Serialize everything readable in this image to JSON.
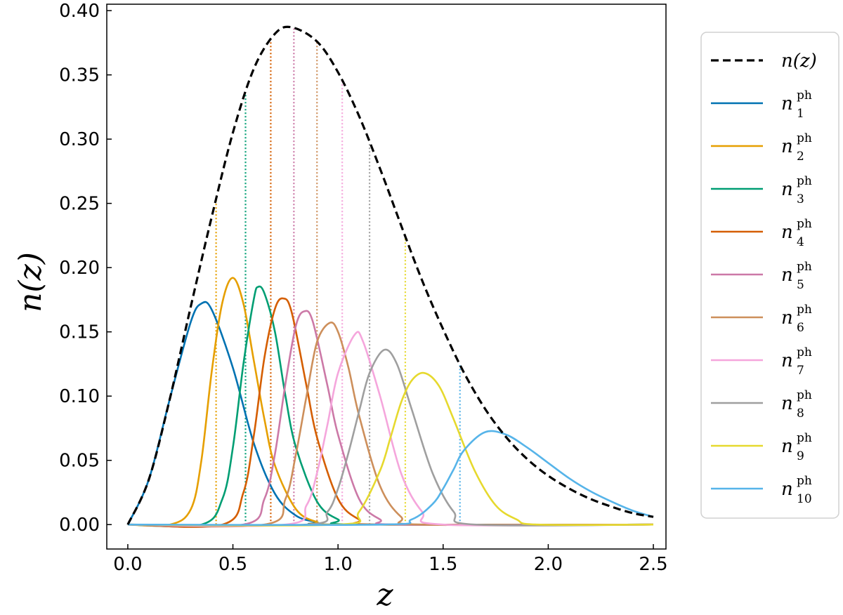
{
  "chart_data": {
    "type": "line",
    "xlabel": "z",
    "ylabel": "n(z)",
    "xlim": [
      -0.1,
      2.56
    ],
    "ylim": [
      -0.019,
      0.405
    ],
    "xticks": [
      "0.0",
      "0.5",
      "1.0",
      "1.5",
      "2.0",
      "2.5"
    ],
    "yticks": [
      "0.00",
      "0.05",
      "0.10",
      "0.15",
      "0.20",
      "0.25",
      "0.30",
      "0.35",
      "0.40"
    ],
    "legend_position": "right, outside",
    "parent": {
      "name": "n(z)",
      "style": "dashed",
      "color": "#000000",
      "x": [
        0.0,
        0.1,
        0.2,
        0.3,
        0.4,
        0.5,
        0.6,
        0.7,
        0.78,
        0.9,
        1.0,
        1.1,
        1.2,
        1.3,
        1.4,
        1.5,
        1.6,
        1.7,
        1.8,
        1.9,
        2.0,
        2.1,
        2.2,
        2.3,
        2.4,
        2.5
      ],
      "y": [
        0.0,
        0.035,
        0.098,
        0.17,
        0.24,
        0.305,
        0.355,
        0.382,
        0.387,
        0.376,
        0.352,
        0.318,
        0.277,
        0.233,
        0.19,
        0.152,
        0.118,
        0.09,
        0.068,
        0.051,
        0.038,
        0.028,
        0.02,
        0.014,
        0.009,
        0.006
      ]
    },
    "series": [
      {
        "name": "1",
        "color": "#0072b2",
        "x": [
          0.0,
          0.1,
          0.2,
          0.3,
          0.35,
          0.4,
          0.5,
          0.6,
          0.7,
          0.8,
          0.9,
          1.0
        ],
        "y": [
          0.0,
          0.035,
          0.098,
          0.158,
          0.172,
          0.167,
          0.122,
          0.063,
          0.024,
          0.007,
          0.002,
          0.0
        ]
      },
      {
        "name": "2",
        "color": "#e69f00",
        "x": [
          0.2,
          0.3,
          0.35,
          0.4,
          0.45,
          0.5,
          0.55,
          0.6,
          0.65,
          0.7,
          0.8,
          0.9,
          1.0
        ],
        "y": [
          0.0,
          0.012,
          0.05,
          0.12,
          0.173,
          0.192,
          0.172,
          0.127,
          0.082,
          0.046,
          0.012,
          0.002,
          0.0
        ]
      },
      {
        "name": "3",
        "color": "#009e73",
        "x": [
          0.35,
          0.45,
          0.5,
          0.55,
          0.6,
          0.62,
          0.65,
          0.7,
          0.75,
          0.8,
          0.9,
          1.0,
          1.1
        ],
        "y": [
          0.0,
          0.02,
          0.06,
          0.125,
          0.176,
          0.185,
          0.18,
          0.15,
          0.1,
          0.06,
          0.018,
          0.004,
          0.0
        ]
      },
      {
        "name": "4",
        "color": "#d55e00",
        "x": [
          0.45,
          0.55,
          0.6,
          0.65,
          0.7,
          0.74,
          0.78,
          0.85,
          0.9,
          1.0,
          1.1,
          1.2
        ],
        "y": [
          0.0,
          0.025,
          0.07,
          0.13,
          0.168,
          0.176,
          0.165,
          0.108,
          0.068,
          0.02,
          0.004,
          0.0
        ]
      },
      {
        "name": "5",
        "color": "#cc79a7",
        "x": [
          0.55,
          0.65,
          0.7,
          0.75,
          0.8,
          0.84,
          0.88,
          0.95,
          1.0,
          1.1,
          1.2,
          1.3
        ],
        "y": [
          0.0,
          0.02,
          0.055,
          0.11,
          0.155,
          0.166,
          0.158,
          0.108,
          0.07,
          0.02,
          0.004,
          0.0
        ]
      },
      {
        "name": "6",
        "color": "#cd8f5b",
        "x": [
          0.65,
          0.75,
          0.8,
          0.85,
          0.9,
          0.96,
          1.0,
          1.05,
          1.1,
          1.2,
          1.3,
          1.4
        ],
        "y": [
          0.0,
          0.02,
          0.055,
          0.1,
          0.142,
          0.157,
          0.15,
          0.122,
          0.085,
          0.03,
          0.006,
          0.0
        ]
      },
      {
        "name": "7",
        "color": "#f5a6dc",
        "x": [
          0.75,
          0.85,
          0.9,
          0.95,
          1.0,
          1.08,
          1.12,
          1.2,
          1.3,
          1.4,
          1.5
        ],
        "y": [
          0.0,
          0.015,
          0.04,
          0.078,
          0.118,
          0.148,
          0.142,
          0.1,
          0.04,
          0.01,
          0.0
        ]
      },
      {
        "name": "8",
        "color": "#9f9f9f",
        "x": [
          0.85,
          0.95,
          1.0,
          1.05,
          1.1,
          1.15,
          1.22,
          1.28,
          1.35,
          1.45,
          1.55,
          1.65
        ],
        "y": [
          0.0,
          0.01,
          0.028,
          0.056,
          0.088,
          0.118,
          0.136,
          0.125,
          0.09,
          0.04,
          0.01,
          0.0
        ]
      },
      {
        "name": "9",
        "color": "#e6d92e",
        "x": [
          1.0,
          1.1,
          1.2,
          1.25,
          1.3,
          1.35,
          1.41,
          1.48,
          1.55,
          1.65,
          1.75,
          1.85,
          1.95
        ],
        "y": [
          0.0,
          0.01,
          0.042,
          0.068,
          0.095,
          0.112,
          0.118,
          0.108,
          0.082,
          0.042,
          0.015,
          0.004,
          0.0
        ]
      },
      {
        "name": "10",
        "color": "#56b4e9",
        "x": [
          1.2,
          1.35,
          1.45,
          1.5,
          1.55,
          1.6,
          1.7,
          1.8,
          1.9,
          2.0,
          2.1,
          2.2,
          2.3,
          2.4,
          2.5
        ],
        "y": [
          0.0,
          0.004,
          0.016,
          0.028,
          0.043,
          0.058,
          0.072,
          0.07,
          0.06,
          0.048,
          0.036,
          0.026,
          0.018,
          0.011,
          0.006
        ]
      }
    ],
    "boundaries": [
      {
        "z": 0.42,
        "color": "#e69f00"
      },
      {
        "z": 0.56,
        "color": "#009e73"
      },
      {
        "z": 0.68,
        "color": "#d55e00"
      },
      {
        "z": 0.79,
        "color": "#cc79a7"
      },
      {
        "z": 0.9,
        "color": "#cd8f5b"
      },
      {
        "z": 1.02,
        "color": "#f5a6dc"
      },
      {
        "z": 1.15,
        "color": "#9f9f9f"
      },
      {
        "z": 1.32,
        "color": "#e6d92e"
      },
      {
        "z": 1.58,
        "color": "#56b4e9"
      }
    ],
    "legend": {
      "parent_label": "n(z)",
      "series_label_base": "n",
      "series_label_sup": "ph",
      "series_label_subs": [
        "1",
        "2",
        "3",
        "4",
        "5",
        "6",
        "7",
        "8",
        "9",
        "10"
      ]
    }
  }
}
